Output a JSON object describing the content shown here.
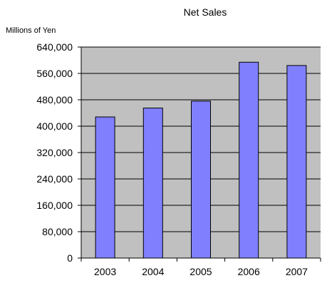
{
  "chart_data": {
    "type": "bar",
    "title": "Net Sales",
    "ylabel": "Millions of Yen",
    "xlabel": "",
    "categories": [
      "2003",
      "2004",
      "2005",
      "2006",
      "2007"
    ],
    "values": [
      428000,
      455000,
      476000,
      594000,
      584000
    ],
    "ylim": [
      0,
      640000
    ],
    "yticks": [
      0,
      80000,
      160000,
      240000,
      320000,
      400000,
      480000,
      560000,
      640000
    ],
    "ytick_labels": [
      "0",
      "80,000",
      "160,000",
      "240,000",
      "320,000",
      "400,000",
      "480,000",
      "560,000",
      "640,000"
    ],
    "grid": true,
    "legend": "none",
    "colors": {
      "bar": "#8080FF",
      "plot_background": "#C0C0C0",
      "gridline": "#000000",
      "axis": "#000000"
    }
  }
}
